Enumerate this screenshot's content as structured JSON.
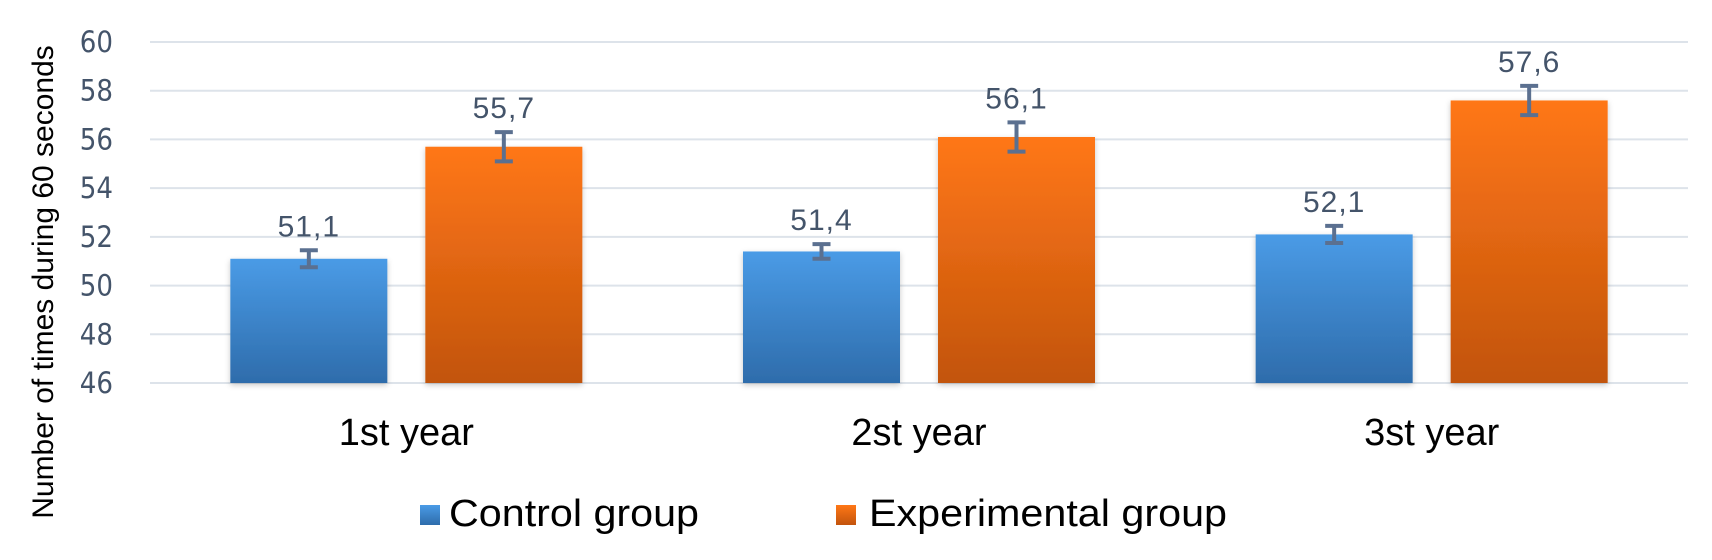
{
  "chart_data": {
    "type": "bar",
    "title": "",
    "xlabel": "",
    "ylabel": "Number of times during 60 seconds",
    "categories": [
      "1st year",
      "2st year",
      "3st year"
    ],
    "ylim": [
      46,
      60
    ],
    "yticks": [
      46,
      48,
      50,
      52,
      54,
      56,
      58,
      60
    ],
    "grid": true,
    "legend_position": "bottom",
    "series": [
      {
        "name": "Control group",
        "values": [
          51.1,
          51.4,
          52.1
        ],
        "labels": [
          "51,1",
          "51,4",
          "52,1"
        ],
        "error": [
          0.35,
          0.3,
          0.35
        ],
        "color_top": "#4A9BE6",
        "color_bottom": "#2E6CAB"
      },
      {
        "name": "Experimental group",
        "values": [
          55.7,
          56.1,
          57.6
        ],
        "labels": [
          "55,7",
          "56,1",
          "57,6"
        ],
        "error": [
          0.6,
          0.6,
          0.6
        ],
        "color_top": "#FF7716",
        "color_bottom": "#C2540D"
      }
    ],
    "error_bar_color": "#5B7090",
    "grid_color": "#DDE3EA",
    "tick_label_color": "#44546A"
  }
}
